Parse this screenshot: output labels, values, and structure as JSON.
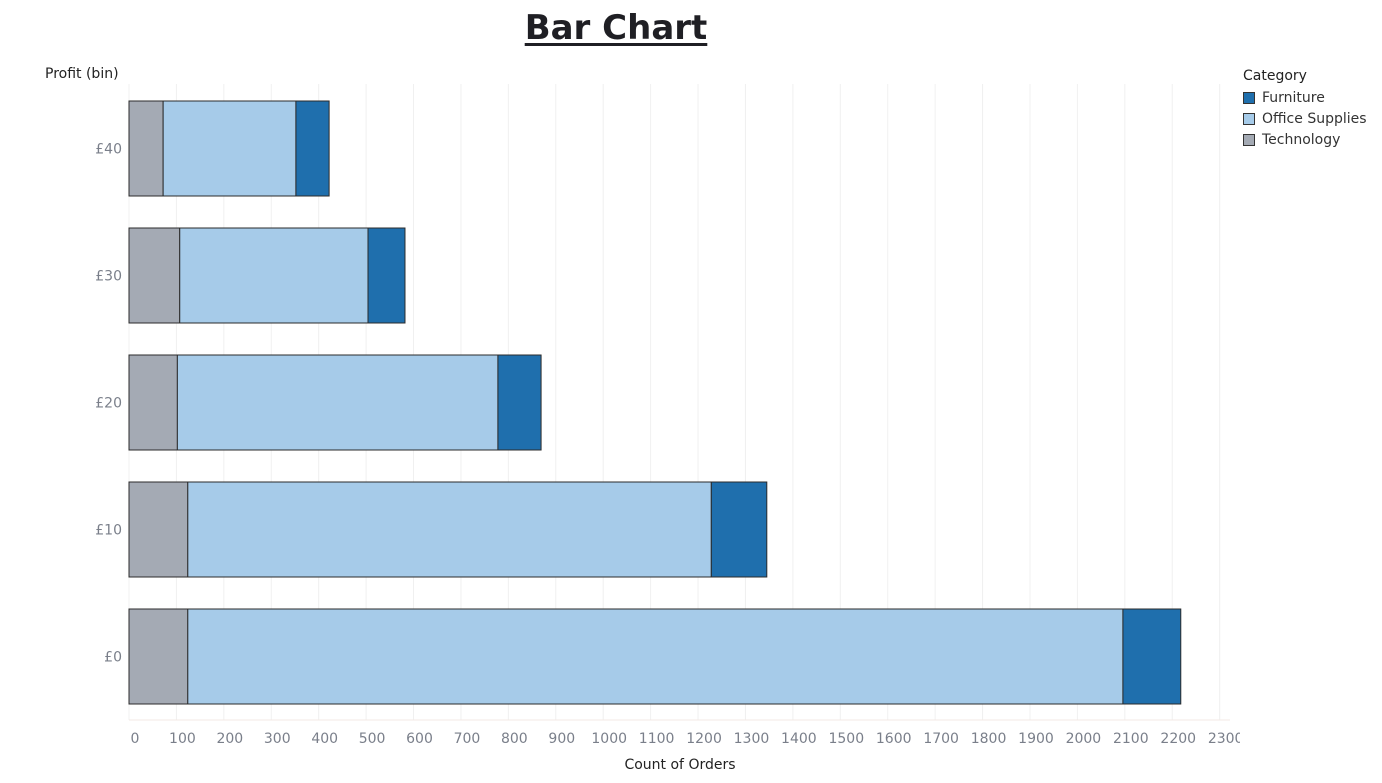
{
  "colors": {
    "furniture": "#1f6fad",
    "office_supplies": "#a6cbe9",
    "technology": "#a4aab4"
  },
  "chart_data": {
    "type": "bar",
    "orientation": "horizontal",
    "stacked": true,
    "title": "Bar Chart",
    "ylabel": "Profit (bin)",
    "xlabel": "Count of Orders",
    "categories": [
      "£40",
      "£30",
      "£20",
      "£10",
      "£0"
    ],
    "series": [
      {
        "name": "Technology",
        "color_key": "technology",
        "values": [
          72,
          107,
          102,
          124,
          124
        ]
      },
      {
        "name": "Office Supplies",
        "color_key": "office_supplies",
        "values": [
          280,
          397,
          676,
          1104,
          1972
        ]
      },
      {
        "name": "Furniture",
        "color_key": "furniture",
        "values": [
          70,
          78,
          91,
          117,
          122
        ]
      }
    ],
    "legend_title": "Category",
    "legend_order": [
      "Furniture",
      "Office Supplies",
      "Technology"
    ],
    "xlim": [
      0,
      2300
    ],
    "xticks": [
      0,
      100,
      200,
      300,
      400,
      500,
      600,
      700,
      800,
      900,
      1000,
      1100,
      1200,
      1300,
      1400,
      1500,
      1600,
      1700,
      1800,
      1900,
      2000,
      2100,
      2200,
      2300
    ],
    "grid": "vertical",
    "legend_position": "top-right"
  }
}
